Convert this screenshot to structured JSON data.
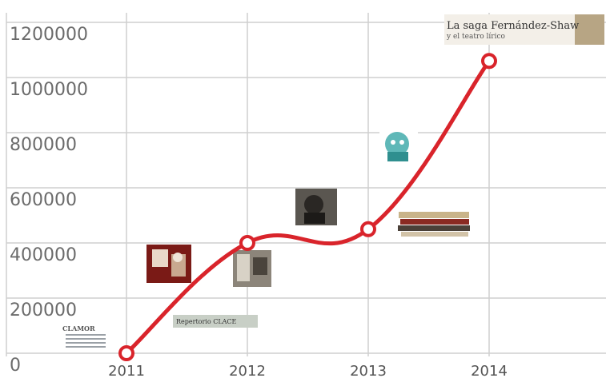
{
  "chart_data": {
    "type": "line",
    "x": [
      2011,
      2012,
      2013,
      2014
    ],
    "values": [
      0,
      400000,
      450000,
      1060000
    ],
    "xlim": [
      2011,
      2015
    ],
    "ylim": [
      0,
      1200000
    ],
    "y_ticks": [
      "0",
      "200000",
      "400000",
      "600000",
      "800000",
      "1000000",
      "1200000"
    ],
    "x_ticks": [
      "2011",
      "2012",
      "2013",
      "2014"
    ],
    "grid": true,
    "line_color": "#d9242b",
    "marker_fill": "#ffffff",
    "annotations": {
      "title_2014": "La saga Fernández-Shaw",
      "subtitle_2014": "y el teatro lírico",
      "label_2011": "Repertorio CLACE",
      "logo_2011": "CLAMOR"
    }
  }
}
